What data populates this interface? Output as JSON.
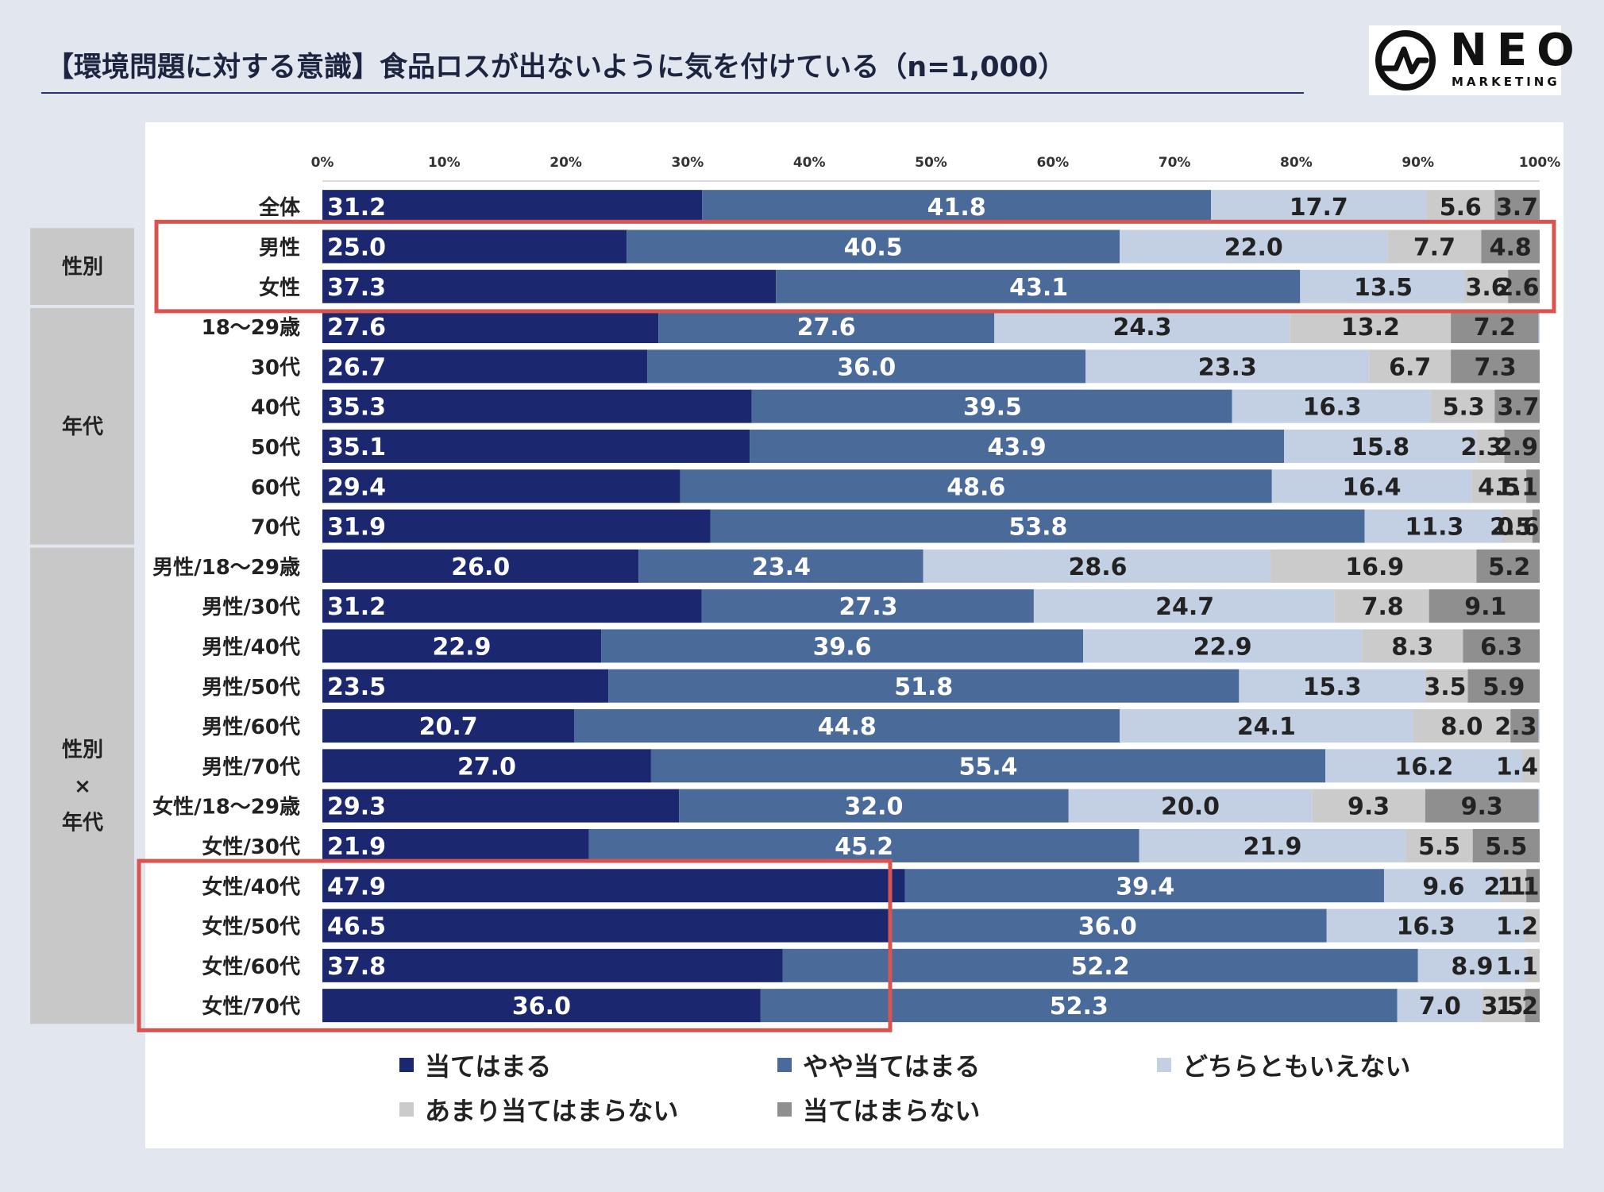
{
  "title": "【環境問題に対する意識】食品ロスが出ないように気を付けている（n=1,000）",
  "logo": {
    "word": "NEO",
    "sub": "MARKETING"
  },
  "colors": [
    "#1b2870",
    "#4a6a99",
    "#c3cfe2",
    "#cbcbcb",
    "#8f8f8f"
  ],
  "chart_data": {
    "type": "bar",
    "orientation": "horizontal",
    "stacked": true,
    "percent_axis": true,
    "ticks": [
      "0%",
      "10%",
      "20%",
      "30%",
      "40%",
      "50%",
      "60%",
      "70%",
      "80%",
      "90%",
      "100%"
    ],
    "categories": [
      "全体",
      "男性",
      "女性",
      "18〜29歳",
      "30代",
      "40代",
      "50代",
      "60代",
      "70代",
      "男性/18〜29歳",
      "男性/30代",
      "男性/40代",
      "男性/50代",
      "男性/60代",
      "男性/70代",
      "女性/18〜29歳",
      "女性/30代",
      "女性/40代",
      "女性/50代",
      "女性/60代",
      "女性/70代"
    ],
    "groups": [
      {
        "label": [
          "性別"
        ],
        "from": 1,
        "to": 2
      },
      {
        "label": [
          "年代"
        ],
        "from": 3,
        "to": 8
      },
      {
        "label": [
          "性別",
          "×",
          "年代"
        ],
        "from": 9,
        "to": 20
      }
    ],
    "highlights": [
      {
        "from": 1,
        "to": 2
      },
      {
        "from": 17,
        "to": 20
      }
    ],
    "series": [
      {
        "name": "当てはまる",
        "values": [
          31.2,
          25.0,
          37.3,
          27.6,
          26.7,
          35.3,
          35.1,
          29.4,
          31.9,
          26.0,
          31.2,
          22.9,
          23.5,
          20.7,
          27.0,
          29.3,
          21.9,
          47.9,
          46.5,
          37.8,
          36.0
        ]
      },
      {
        "name": "やや当てはまる",
        "values": [
          41.8,
          40.5,
          43.1,
          27.6,
          36.0,
          39.5,
          43.9,
          48.6,
          53.8,
          23.4,
          27.3,
          39.6,
          51.8,
          44.8,
          55.4,
          32.0,
          45.2,
          39.4,
          36.0,
          52.2,
          52.3
        ]
      },
      {
        "name": "どちらともいえない",
        "values": [
          17.7,
          22.0,
          13.5,
          24.3,
          23.3,
          16.3,
          15.8,
          16.4,
          11.3,
          28.6,
          24.7,
          22.9,
          15.3,
          24.1,
          16.2,
          20.0,
          21.9,
          9.6,
          16.3,
          8.9,
          7.0
        ]
      },
      {
        "name": "あまり当てはまらない",
        "values": [
          5.6,
          7.7,
          3.6,
          13.2,
          6.7,
          5.3,
          2.3,
          4.5,
          2.5,
          16.9,
          7.8,
          8.3,
          3.5,
          8.0,
          1.4,
          9.3,
          5.5,
          2.1,
          1.2,
          1.1,
          3.5
        ]
      },
      {
        "name": "当てはまらない",
        "values": [
          3.7,
          4.8,
          2.6,
          7.2,
          7.3,
          3.7,
          2.9,
          1.1,
          0.6,
          5.2,
          9.1,
          6.3,
          5.9,
          2.3,
          null,
          9.3,
          5.5,
          1.1,
          null,
          null,
          1.2
        ]
      }
    ],
    "legend": [
      "当てはまる",
      "やや当てはまる",
      "どちらともいえない",
      "あまり当てはまらない",
      "当てはまらない"
    ]
  }
}
